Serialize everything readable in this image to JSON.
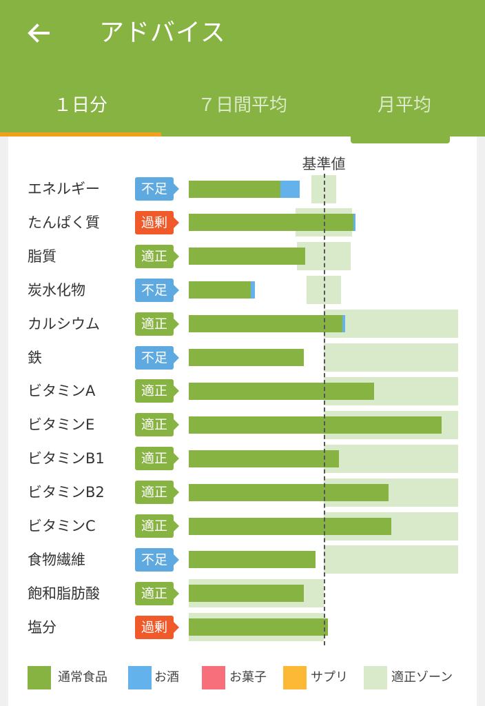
{
  "header": {
    "title": "アドバイス"
  },
  "tabs": [
    {
      "label": "１日分",
      "active": true
    },
    {
      "label": "７日間平均",
      "active": false
    },
    {
      "label": "月平均",
      "active": false
    }
  ],
  "chart": {
    "reference_label": "基準値",
    "status_colors": {
      "不足": "#5da9e0",
      "過剰": "#f05a2a",
      "適正": "#86b342"
    },
    "series_colors": {
      "通常食品": "#86b342",
      "お酒": "#63b2ec",
      "お菓子": "#f76f7a",
      "サプリ": "#fbb936",
      "適正ゾーン": "#d9eacb"
    }
  },
  "chart_data": {
    "type": "bar",
    "orientation": "horizontal",
    "reference_line": 100,
    "x_range": [
      0,
      200
    ],
    "categories": [
      "エネルギー",
      "たんぱく質",
      "脂質",
      "炭水化物",
      "カルシウム",
      "鉄",
      "ビタミンA",
      "ビタミンE",
      "ビタミンB1",
      "ビタミンB2",
      "ビタミンC",
      "食物繊維",
      "飽和脂肪酸",
      "塩分"
    ],
    "status": [
      "不足",
      "過剰",
      "適正",
      "不足",
      "適正",
      "不足",
      "適正",
      "適正",
      "適正",
      "適正",
      "適正",
      "不足",
      "適正",
      "過剰"
    ],
    "series": [
      {
        "name": "通常食品",
        "values": [
          68,
          122,
          86,
          46,
          114,
          85,
          137,
          187,
          111,
          148,
          150,
          94,
          85,
          103
        ]
      },
      {
        "name": "お酒",
        "values": [
          14,
          1,
          0,
          3,
          2,
          0,
          0,
          0,
          0,
          0,
          0,
          0,
          0,
          0
        ]
      },
      {
        "name": "お菓子",
        "values": [
          0,
          0,
          0,
          0,
          0,
          0,
          0,
          0,
          0,
          0,
          0,
          0,
          0,
          0
        ]
      },
      {
        "name": "サプリ",
        "values": [
          0,
          0,
          0,
          0,
          0,
          0,
          0,
          0,
          0,
          0,
          0,
          0,
          0,
          0
        ]
      }
    ],
    "target_zones": [
      [
        91,
        109
      ],
      [
        79,
        121
      ],
      [
        80,
        120
      ],
      [
        87,
        113
      ],
      [
        100,
        200
      ],
      [
        100,
        200
      ],
      [
        100,
        200
      ],
      [
        100,
        200
      ],
      [
        100,
        200
      ],
      [
        100,
        200
      ],
      [
        100,
        200
      ],
      [
        100,
        200
      ],
      [
        0,
        100
      ],
      [
        0,
        100
      ]
    ]
  },
  "legend": [
    {
      "label": "通常食品",
      "color": "#86b342"
    },
    {
      "label": "お酒",
      "color": "#63b2ec"
    },
    {
      "label": "お菓子",
      "color": "#f76f7a"
    },
    {
      "label": "サプリ",
      "color": "#fbb936"
    },
    {
      "label": "適正ゾーン",
      "color": "#d9eacb"
    }
  ]
}
